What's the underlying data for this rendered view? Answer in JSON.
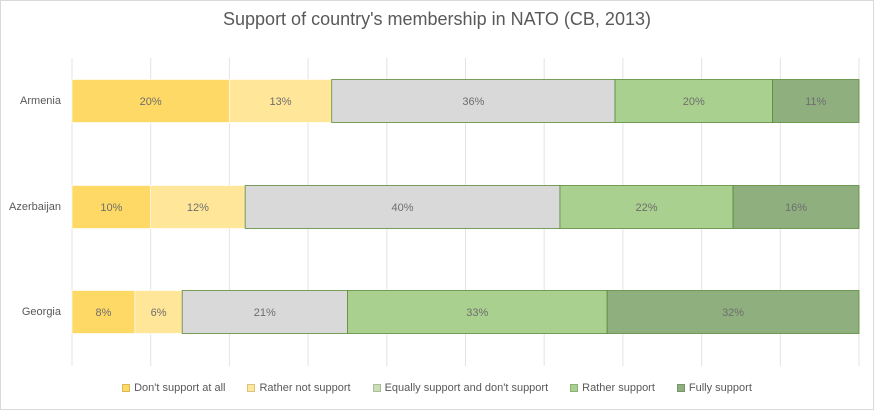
{
  "chart_data": {
    "type": "bar",
    "orientation": "horizontal",
    "stacked": true,
    "title": "Support of country's membership in NATO (CB, 2013)",
    "categories": [
      "Armenia",
      "Azerbaijan",
      "Georgia"
    ],
    "series": [
      {
        "name": "Don't support at all",
        "values": [
          20,
          10,
          8
        ],
        "labels": [
          "20%",
          "10%",
          "8%"
        ],
        "color": "#ffd966"
      },
      {
        "name": "Rather not support",
        "values": [
          13,
          12,
          6
        ],
        "labels": [
          "13%",
          "12%",
          "6%"
        ],
        "color": "#ffe699"
      },
      {
        "name": "Equally support and don't support",
        "values": [
          36,
          40,
          21
        ],
        "labels": [
          "36%",
          "40%",
          "21%"
        ],
        "color": "#d9d9d9"
      },
      {
        "name": "Rather support",
        "values": [
          20,
          22,
          33
        ],
        "labels": [
          "20%",
          "22%",
          "33%"
        ],
        "color": "#a9d08e"
      },
      {
        "name": "Fully support",
        "values": [
          11,
          16,
          32
        ],
        "labels": [
          "11%",
          "16%",
          "32%"
        ],
        "color": "#8faf7f"
      }
    ],
    "legend_swatch_colors": [
      "#ffd966",
      "#ffe699",
      "#c9dfb6",
      "#a9d08e",
      "#8faf7f"
    ],
    "grid": true,
    "legend_position": "bottom"
  }
}
